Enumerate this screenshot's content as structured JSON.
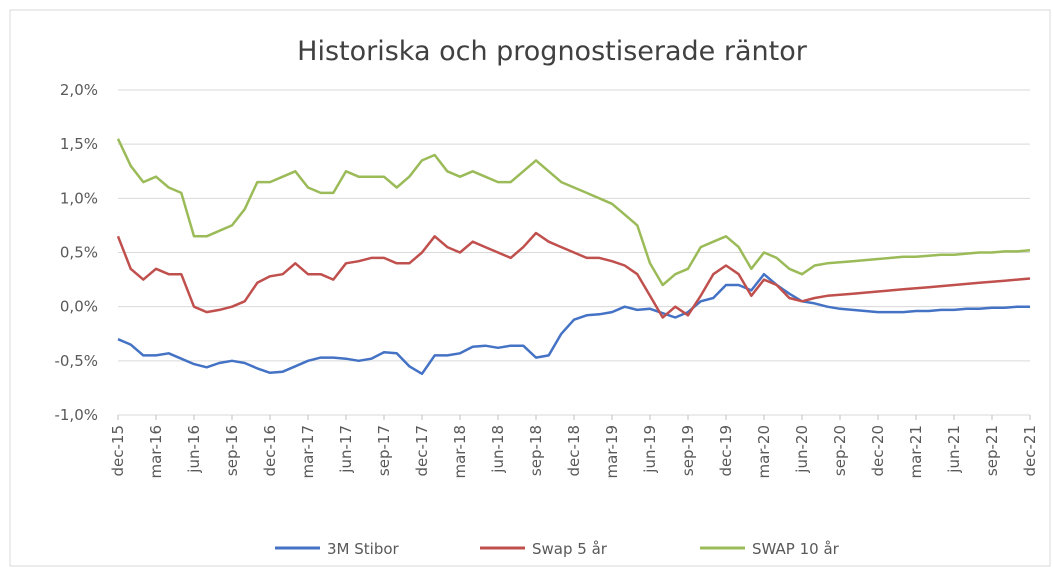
{
  "chart_data": {
    "type": "line",
    "title": "Historiska och prognostiserade räntor",
    "categories": [
      "dec-15",
      null,
      null,
      "mar-16",
      null,
      null,
      "jun-16",
      null,
      null,
      "sep-16",
      null,
      null,
      "dec-16",
      null,
      null,
      "mar-17",
      null,
      null,
      "jun-17",
      null,
      null,
      "sep-17",
      null,
      null,
      "dec-17",
      null,
      null,
      "mar-18",
      null,
      null,
      "jun-18",
      null,
      null,
      "sep-18",
      null,
      null,
      "dec-18",
      null,
      null,
      "mar-19",
      null,
      null,
      "jun-19",
      null,
      null,
      "sep-19",
      null,
      null,
      "dec-19",
      null,
      null,
      "mar-20",
      null,
      null,
      "jun-20",
      null,
      null,
      "sep-20",
      null,
      null,
      "dec-20",
      null,
      null,
      "mar-21",
      null,
      null,
      "jun-21",
      null,
      null,
      "sep-21",
      null,
      null,
      "dec-21"
    ],
    "series": [
      {
        "name": "3M Stibor",
        "color": "#4472c4",
        "values": [
          -0.3,
          -0.35,
          -0.45,
          -0.45,
          -0.43,
          -0.48,
          -0.53,
          -0.56,
          -0.52,
          -0.5,
          -0.52,
          -0.57,
          -0.61,
          -0.6,
          -0.55,
          -0.5,
          -0.47,
          -0.47,
          -0.48,
          -0.5,
          -0.48,
          -0.42,
          -0.43,
          -0.55,
          -0.62,
          -0.45,
          -0.45,
          -0.43,
          -0.37,
          -0.36,
          -0.38,
          -0.36,
          -0.36,
          -0.47,
          -0.45,
          -0.25,
          -0.12,
          -0.08,
          -0.07,
          -0.05,
          0.0,
          -0.03,
          -0.02,
          -0.06,
          -0.1,
          -0.05,
          0.05,
          0.08,
          0.2,
          0.2,
          0.15,
          0.3,
          0.2,
          0.12,
          0.05,
          0.03,
          0.0,
          -0.02,
          -0.03,
          -0.04,
          -0.05,
          -0.05,
          -0.05,
          -0.04,
          -0.04,
          -0.03,
          -0.03,
          -0.02,
          -0.02,
          -0.01,
          -0.01,
          0.0,
          0.0
        ]
      },
      {
        "name": "Swap 5 år",
        "color": "#c0504d",
        "values": [
          0.65,
          0.35,
          0.25,
          0.35,
          0.3,
          0.3,
          0.0,
          -0.05,
          -0.03,
          0.0,
          0.05,
          0.22,
          0.28,
          0.3,
          0.4,
          0.3,
          0.3,
          0.25,
          0.4,
          0.42,
          0.45,
          0.45,
          0.4,
          0.4,
          0.5,
          0.65,
          0.55,
          0.5,
          0.6,
          0.55,
          0.5,
          0.45,
          0.55,
          0.68,
          0.6,
          0.55,
          0.5,
          0.45,
          0.45,
          0.42,
          0.38,
          0.3,
          0.1,
          -0.1,
          0.0,
          -0.08,
          0.1,
          0.3,
          0.38,
          0.3,
          0.1,
          0.25,
          0.2,
          0.08,
          0.05,
          0.08,
          0.1,
          0.11,
          0.12,
          0.13,
          0.14,
          0.15,
          0.16,
          0.17,
          0.18,
          0.19,
          0.2,
          0.21,
          0.22,
          0.23,
          0.24,
          0.25,
          0.26
        ]
      },
      {
        "name": "SWAP 10 år",
        "color": "#9bbb59",
        "values": [
          1.55,
          1.3,
          1.15,
          1.2,
          1.1,
          1.05,
          0.65,
          0.65,
          0.7,
          0.75,
          0.9,
          1.15,
          1.15,
          1.2,
          1.25,
          1.1,
          1.05,
          1.05,
          1.25,
          1.2,
          1.2,
          1.2,
          1.1,
          1.2,
          1.35,
          1.4,
          1.25,
          1.2,
          1.25,
          1.2,
          1.15,
          1.15,
          1.25,
          1.35,
          1.25,
          1.15,
          1.1,
          1.05,
          1.0,
          0.95,
          0.85,
          0.75,
          0.4,
          0.2,
          0.3,
          0.35,
          0.55,
          0.6,
          0.65,
          0.55,
          0.35,
          0.5,
          0.45,
          0.35,
          0.3,
          0.38,
          0.4,
          0.41,
          0.42,
          0.43,
          0.44,
          0.45,
          0.46,
          0.46,
          0.47,
          0.48,
          0.48,
          0.49,
          0.5,
          0.5,
          0.51,
          0.51,
          0.52
        ]
      }
    ],
    "ylim": [
      -1,
      2
    ],
    "yticks": [
      {
        "value": -1,
        "label": "-1,0%"
      },
      {
        "value": -0.5,
        "label": "-0,5%"
      },
      {
        "value": 0,
        "label": "0,0%"
      },
      {
        "value": 0.5,
        "label": "0,5%"
      },
      {
        "value": 1,
        "label": "1,0%"
      },
      {
        "value": 1.5,
        "label": "1,5%"
      },
      {
        "value": 2,
        "label": "2,0%"
      }
    ],
    "grid": true,
    "legend": "bottom"
  }
}
